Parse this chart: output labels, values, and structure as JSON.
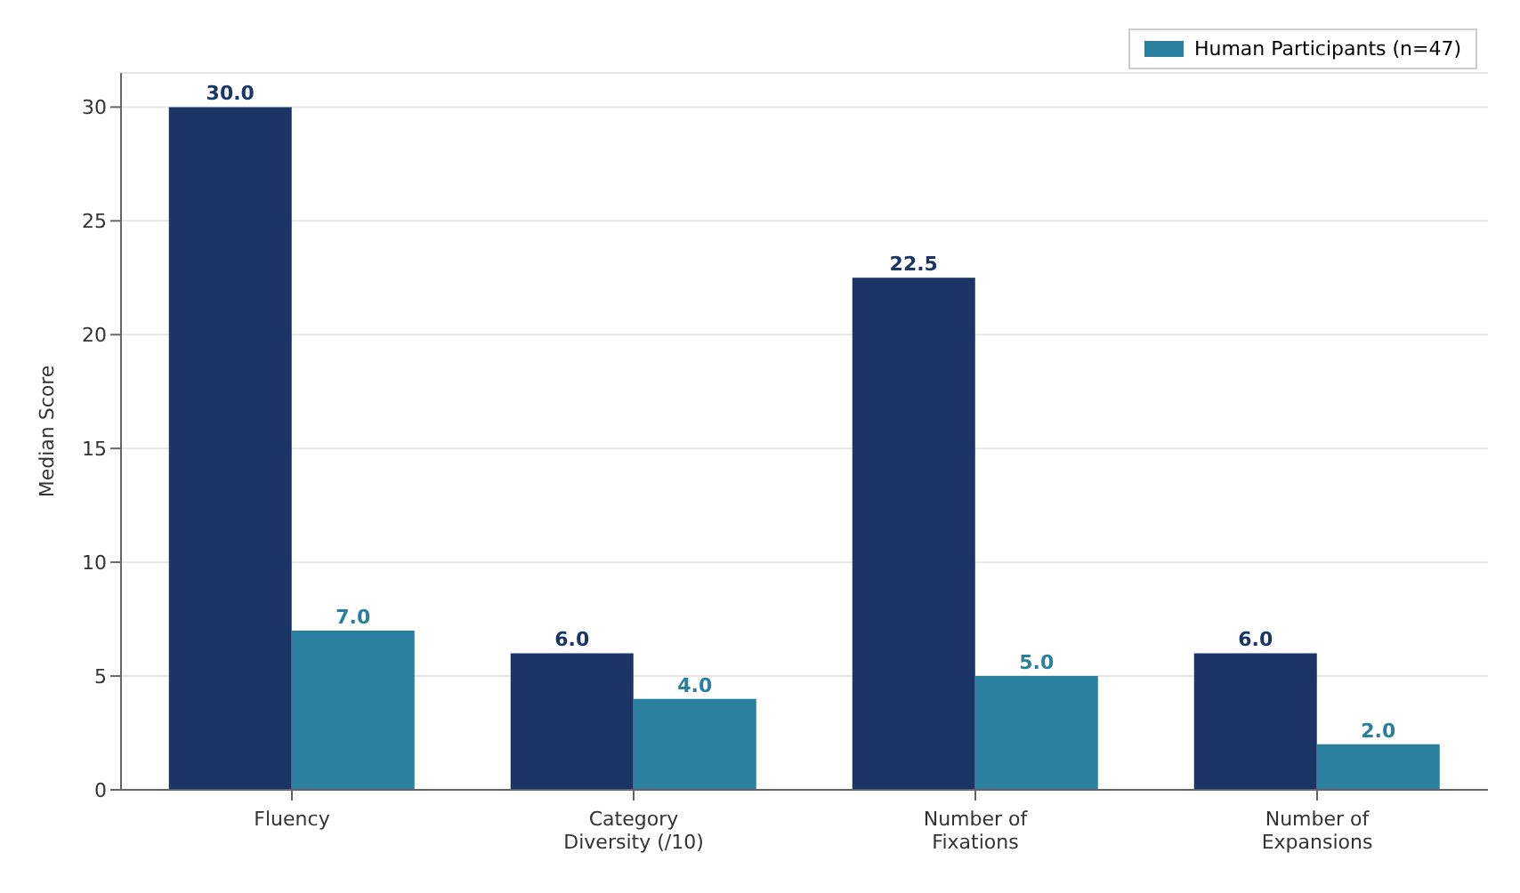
{
  "chart_data": {
    "type": "bar",
    "ylabel": "Median Score",
    "categories": [
      "Fluency",
      "Category\nDiversity (/10)",
      "Number of\nFixations",
      "Number of\nExpansions"
    ],
    "series": [
      {
        "color": "#1b3566",
        "values": [
          30,
          6,
          22.5,
          6
        ],
        "value_labels": [
          "30.0",
          "6.0",
          "22.5",
          "6.0"
        ]
      },
      {
        "name": "Human Participants (n=47)",
        "color": "#2a7f9e",
        "values": [
          7,
          4,
          5,
          2
        ],
        "value_labels": [
          "7.0",
          "4.0",
          "5.0",
          "2.0"
        ]
      }
    ],
    "ylim": [
      0,
      31.5
    ],
    "yticks": [
      0,
      5,
      10,
      15,
      20,
      25,
      30
    ],
    "grid": "y",
    "legend": "top right"
  }
}
